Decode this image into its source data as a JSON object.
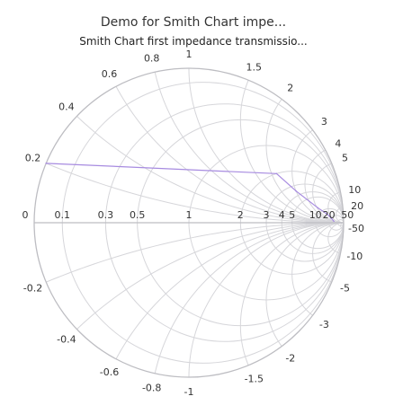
{
  "chart_data": {
    "type": "line",
    "chart_kind": "smith-impedance",
    "title": "Demo for Smith Chart impe...",
    "subtitle": "Smith Chart first impedance transmissio...",
    "resistance_ticks": [
      "0",
      "0.1",
      "0.3",
      "0.5",
      "1",
      "2",
      "3",
      "4",
      "5",
      "10",
      "20",
      "50"
    ],
    "resistance_values": [
      0,
      0.1,
      0.3,
      0.5,
      1,
      2,
      3,
      4,
      5,
      10,
      20,
      50
    ],
    "reactance_ticks": [
      "0.2",
      "0.4",
      "0.6",
      "0.8",
      "1",
      "1.5",
      "2",
      "3",
      "4",
      "5",
      "10",
      "20",
      "-50",
      "-10",
      "-5",
      "-3",
      "-2",
      "-1.5",
      "-1",
      "-0.8",
      "-0.6",
      "-0.4",
      "-0.2"
    ],
    "reactance_values": [
      0.2,
      0.4,
      0.6,
      0.8,
      1,
      1.5,
      2,
      3,
      4,
      5,
      10,
      20,
      -50,
      -10,
      -5,
      -3,
      -2,
      -1.5,
      -1,
      -0.8,
      -0.6,
      -0.4,
      -0.2
    ],
    "series": [
      {
        "points": [
          {
            "r": 0,
            "x": 0.2
          },
          {
            "r": 2,
            "x": 2.2
          },
          {
            "r": 3.5,
            "x": 3.0
          },
          {
            "r": 8,
            "x": 5.2
          },
          {
            "r": 14,
            "x": 7.8
          },
          {
            "r": 30,
            "x": 5.0
          }
        ]
      }
    ],
    "color": "#a78be0",
    "grid": true,
    "legend": "none"
  }
}
